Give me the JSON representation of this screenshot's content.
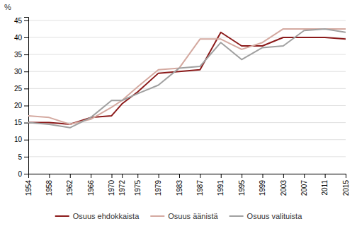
{
  "chart_data": {
    "type": "line",
    "y_label": "%",
    "x": [
      1954,
      1958,
      1962,
      1966,
      1970,
      1972,
      1975,
      1979,
      1983,
      1987,
      1991,
      1995,
      1999,
      2003,
      2007,
      2011,
      2015
    ],
    "series": [
      {
        "name": "Osuus ehdokkaista",
        "color": "#8B1A1A",
        "values": [
          15.0,
          15.0,
          14.5,
          16.5,
          17.0,
          20.5,
          24.0,
          29.5,
          30.0,
          30.5,
          41.5,
          37.5,
          37.5,
          40.0,
          40.0,
          40.0,
          39.5
        ]
      },
      {
        "name": "Osuus äänistä",
        "color": "#D4A9A0",
        "values": [
          17.0,
          16.5,
          14.5,
          16.0,
          19.5,
          21.5,
          25.5,
          30.5,
          31.0,
          39.5,
          39.5,
          36.5,
          38.5,
          42.5,
          42.5,
          42.5,
          42.5
        ]
      },
      {
        "name": "Osuus valituista",
        "color": "#A0A0A0",
        "values": [
          15.0,
          14.5,
          13.5,
          16.5,
          21.5,
          21.5,
          23.5,
          26.0,
          31.0,
          31.5,
          38.5,
          33.5,
          37.0,
          37.5,
          42.0,
          42.5,
          41.5
        ]
      }
    ],
    "xlim": [
      1954,
      2015
    ],
    "xticks": [
      1954,
      1958,
      1962,
      1966,
      1970,
      1972,
      1975,
      1979,
      1983,
      1987,
      1991,
      1995,
      1999,
      2003,
      2007,
      2011,
      2015
    ],
    "ylim": [
      0,
      46
    ],
    "yticks": [
      0,
      5,
      10,
      15,
      20,
      25,
      30,
      35,
      40,
      45
    ],
    "grid": true,
    "legend": "bottom"
  }
}
